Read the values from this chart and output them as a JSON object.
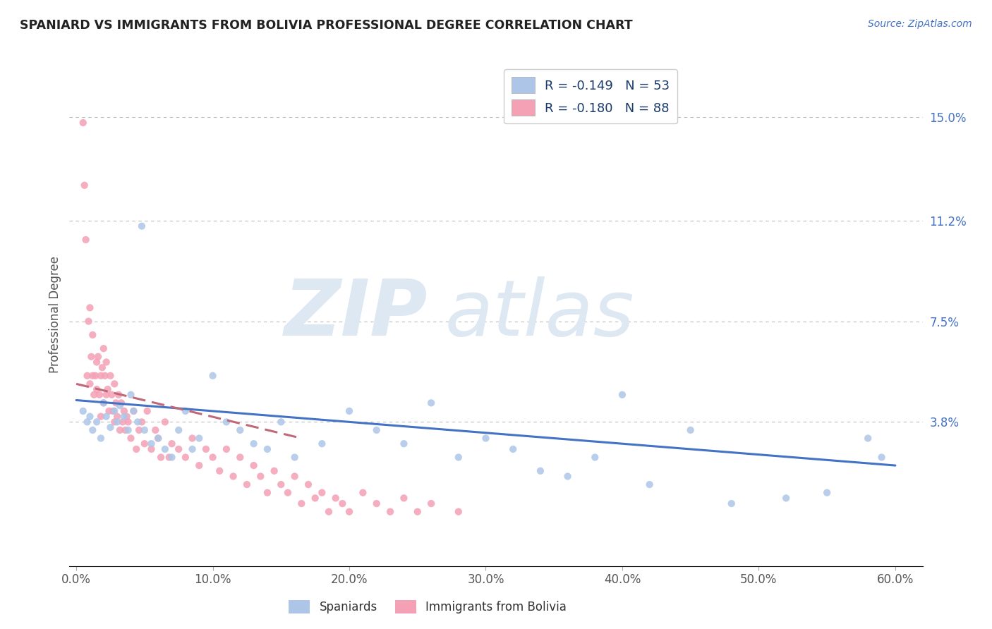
{
  "title": "SPANIARD VS IMMIGRANTS FROM BOLIVIA PROFESSIONAL DEGREE CORRELATION CHART",
  "source_text": "Source: ZipAtlas.com",
  "ylabel": "Professional Degree",
  "xlim": [
    -0.005,
    0.62
  ],
  "ylim": [
    -0.015,
    0.17
  ],
  "yticks": [
    0.038,
    0.075,
    0.112,
    0.15
  ],
  "ytick_labels": [
    "3.8%",
    "7.5%",
    "11.2%",
    "15.0%"
  ],
  "xticks": [
    0.0,
    0.1,
    0.2,
    0.3,
    0.4,
    0.5,
    0.6
  ],
  "xtick_labels": [
    "0.0%",
    "10.0%",
    "20.0%",
    "30.0%",
    "40.0%",
    "50.0%",
    "60.0%"
  ],
  "blue_color": "#adc6e8",
  "pink_color": "#f4a0b5",
  "trend_line_color_blue": "#4472c4",
  "trend_line_color_pink": "#c06878",
  "legend_r_blue": "R = -0.149",
  "legend_n_blue": "N = 53",
  "legend_r_pink": "R = -0.180",
  "legend_n_pink": "N = 88",
  "blue_trend_x": [
    0.0,
    0.6
  ],
  "blue_trend_y": [
    0.046,
    0.022
  ],
  "pink_trend_x": [
    0.0,
    0.165
  ],
  "pink_trend_y": [
    0.052,
    0.032
  ],
  "spaniards_x": [
    0.005,
    0.008,
    0.01,
    0.012,
    0.015,
    0.018,
    0.02,
    0.022,
    0.025,
    0.028,
    0.03,
    0.032,
    0.035,
    0.038,
    0.04,
    0.042,
    0.045,
    0.048,
    0.05,
    0.055,
    0.06,
    0.065,
    0.07,
    0.075,
    0.08,
    0.085,
    0.09,
    0.1,
    0.11,
    0.12,
    0.13,
    0.14,
    0.15,
    0.16,
    0.18,
    0.2,
    0.22,
    0.24,
    0.26,
    0.28,
    0.3,
    0.32,
    0.34,
    0.36,
    0.38,
    0.4,
    0.42,
    0.45,
    0.48,
    0.52,
    0.55,
    0.58,
    0.59
  ],
  "spaniards_y": [
    0.042,
    0.038,
    0.04,
    0.035,
    0.038,
    0.032,
    0.045,
    0.04,
    0.036,
    0.042,
    0.038,
    0.044,
    0.04,
    0.035,
    0.048,
    0.042,
    0.038,
    0.11,
    0.035,
    0.03,
    0.032,
    0.028,
    0.025,
    0.035,
    0.042,
    0.028,
    0.032,
    0.055,
    0.038,
    0.035,
    0.03,
    0.028,
    0.038,
    0.025,
    0.03,
    0.042,
    0.035,
    0.03,
    0.045,
    0.025,
    0.032,
    0.028,
    0.02,
    0.018,
    0.025,
    0.048,
    0.015,
    0.035,
    0.008,
    0.01,
    0.012,
    0.032,
    0.025
  ],
  "bolivia_x": [
    0.005,
    0.006,
    0.007,
    0.008,
    0.009,
    0.01,
    0.01,
    0.011,
    0.012,
    0.012,
    0.013,
    0.014,
    0.015,
    0.015,
    0.016,
    0.017,
    0.018,
    0.018,
    0.019,
    0.02,
    0.02,
    0.021,
    0.022,
    0.022,
    0.023,
    0.024,
    0.025,
    0.026,
    0.027,
    0.028,
    0.028,
    0.029,
    0.03,
    0.031,
    0.032,
    0.033,
    0.034,
    0.035,
    0.036,
    0.037,
    0.038,
    0.04,
    0.042,
    0.044,
    0.046,
    0.048,
    0.05,
    0.052,
    0.055,
    0.058,
    0.06,
    0.062,
    0.065,
    0.068,
    0.07,
    0.075,
    0.08,
    0.085,
    0.09,
    0.095,
    0.1,
    0.105,
    0.11,
    0.115,
    0.12,
    0.125,
    0.13,
    0.135,
    0.14,
    0.145,
    0.15,
    0.155,
    0.16,
    0.165,
    0.17,
    0.175,
    0.18,
    0.185,
    0.19,
    0.195,
    0.2,
    0.21,
    0.22,
    0.23,
    0.24,
    0.25,
    0.26,
    0.28
  ],
  "bolivia_y": [
    0.148,
    0.125,
    0.105,
    0.055,
    0.075,
    0.08,
    0.052,
    0.062,
    0.055,
    0.07,
    0.048,
    0.055,
    0.05,
    0.06,
    0.062,
    0.048,
    0.055,
    0.04,
    0.058,
    0.045,
    0.065,
    0.055,
    0.048,
    0.06,
    0.05,
    0.042,
    0.055,
    0.048,
    0.042,
    0.038,
    0.052,
    0.045,
    0.04,
    0.048,
    0.035,
    0.045,
    0.038,
    0.042,
    0.035,
    0.04,
    0.038,
    0.032,
    0.042,
    0.028,
    0.035,
    0.038,
    0.03,
    0.042,
    0.028,
    0.035,
    0.032,
    0.025,
    0.038,
    0.025,
    0.03,
    0.028,
    0.025,
    0.032,
    0.022,
    0.028,
    0.025,
    0.02,
    0.028,
    0.018,
    0.025,
    0.015,
    0.022,
    0.018,
    0.012,
    0.02,
    0.015,
    0.012,
    0.018,
    0.008,
    0.015,
    0.01,
    0.012,
    0.005,
    0.01,
    0.008,
    0.005,
    0.012,
    0.008,
    0.005,
    0.01,
    0.005,
    0.008,
    0.005
  ]
}
